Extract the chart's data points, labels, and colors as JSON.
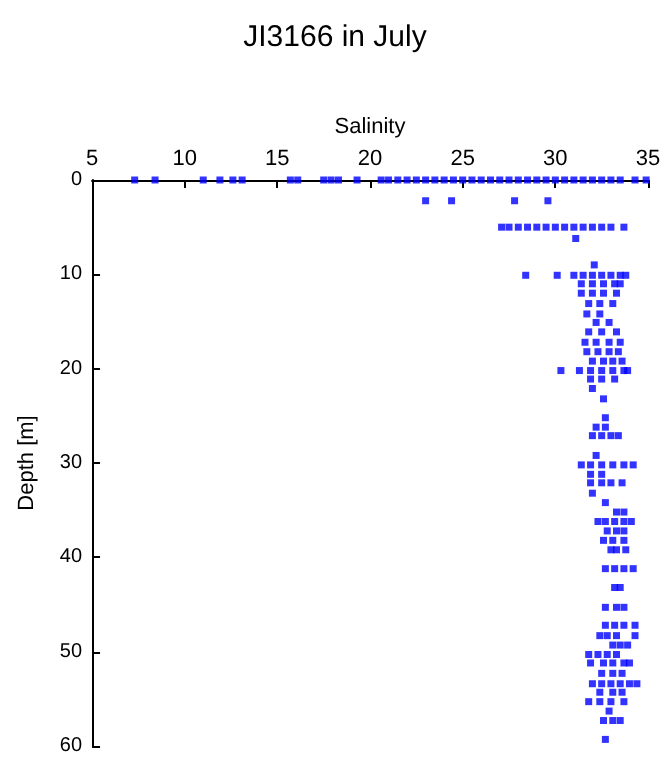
{
  "chart_data": {
    "type": "scatter",
    "title": "JI3166 in July",
    "xlabel": "Salinity",
    "ylabel": "Depth [m]",
    "xlim": [
      5,
      35
    ],
    "xticks": [
      5,
      10,
      15,
      20,
      25,
      30,
      35
    ],
    "ylim": [
      60,
      0
    ],
    "yticks": [
      0,
      10,
      20,
      30,
      40,
      50,
      60
    ],
    "grid": false,
    "marker": "square",
    "series": [
      {
        "color": "#0000ff",
        "x": [
          7.3,
          8.4,
          11.0,
          11.9,
          12.6,
          13.1,
          15.7,
          16.1,
          17.5,
          17.9,
          18.3,
          19.3,
          20.6,
          21.0,
          21.5,
          22.0,
          22.5,
          23,
          23.5,
          24,
          24.5,
          25,
          25.5,
          26,
          26.5,
          27,
          27.5,
          28,
          28.5,
          29,
          29.5,
          30,
          30.5,
          31,
          31.5,
          32,
          32.5,
          33,
          33.5,
          34.3,
          34.9,
          23.0,
          24.4,
          27.8,
          29.6,
          27.1,
          27.5,
          28,
          28.5,
          29,
          29.5,
          30,
          30.5,
          31,
          31.5,
          32,
          32.5,
          33,
          33.7,
          31.1,
          32.1,
          28.4,
          30.1,
          31.0,
          31.5,
          32,
          32.5,
          33,
          33.5,
          33.8,
          31.4,
          32,
          32.6,
          33.2,
          33.5,
          31.4,
          32,
          32.6,
          33.3,
          31.8,
          32.4,
          33.1,
          31.7,
          32.4,
          32.2,
          32.9,
          31.8,
          32.5,
          33.3,
          31.6,
          32.2,
          32.9,
          33.5,
          31.7,
          32.3,
          32.9,
          33.4,
          32.0,
          32.6,
          33.1,
          33.6,
          30.3,
          31.3,
          31.9,
          32.5,
          33.1,
          33.7,
          33.9,
          31.9,
          32.5,
          33.2,
          32.0,
          32.6,
          32.7,
          32.2,
          32.7,
          32.0,
          32.5,
          33.0,
          33.4,
          32.2,
          31.4,
          31.9,
          32.5,
          33.1,
          33.7,
          34.2,
          31.9,
          32.5,
          31.9,
          32.5,
          33.0,
          33.6,
          32.0,
          32.7,
          33.3,
          33.7,
          32.3,
          32.7,
          33.2,
          33.7,
          34.1,
          32.8,
          33.3,
          33.7,
          32.6,
          33.1,
          33.7,
          33.0,
          33.3,
          33.8,
          32.7,
          33.2,
          33.7,
          34.2,
          33.2,
          33.5,
          32.7,
          33.3,
          33.7,
          32.7,
          33.2,
          33.7,
          34.3,
          32.4,
          32.8,
          33.3,
          34.3,
          33.1,
          33.5,
          33.9,
          31.8,
          32.3,
          32.8,
          33.3,
          31.9,
          32.6,
          33.1,
          33.7,
          34.0,
          32.5,
          33.1,
          33.6,
          32.0,
          32.5,
          33.0,
          33.5,
          34.0,
          34.4,
          32.4,
          33.1,
          33.6,
          31.8,
          32.4,
          33.0,
          33.7,
          32.9,
          32.6,
          33.1,
          33.5,
          32.7
        ],
        "values": [
          0,
          0,
          0,
          0,
          0,
          0,
          0,
          0,
          0,
          0,
          0,
          0,
          0,
          0,
          0,
          0,
          0,
          0,
          0,
          0,
          0,
          0,
          0,
          0,
          0,
          0,
          0,
          0,
          0,
          0,
          0,
          0,
          0,
          0,
          0,
          0,
          0,
          0,
          0,
          0,
          0,
          2.2,
          2.2,
          2.2,
          2.2,
          5,
          5,
          5,
          5,
          5,
          5,
          5,
          5,
          5,
          5,
          5,
          5,
          5,
          5,
          6.2,
          9.0,
          10.1,
          10.1,
          10.1,
          10.1,
          10.1,
          10.1,
          10.1,
          10.1,
          10.1,
          11,
          11,
          11,
          11,
          11,
          12,
          12,
          12,
          12,
          13.1,
          13.1,
          13.1,
          14.2,
          14.2,
          15.1,
          15.1,
          16.1,
          16.1,
          16.1,
          17.2,
          17.2,
          17.2,
          17.2,
          18.2,
          18.2,
          18.2,
          18.2,
          19.2,
          19.2,
          19.2,
          19.2,
          20.2,
          20.2,
          20.2,
          20.2,
          20.2,
          20.2,
          20.2,
          21.1,
          21.1,
          21.1,
          22.1,
          23.2,
          25.2,
          26.2,
          26.2,
          27.1,
          27.1,
          27.1,
          27.1,
          29.2,
          30.2,
          30.2,
          30.2,
          30.2,
          30.2,
          30.2,
          31.2,
          31.2,
          32.1,
          32.1,
          32.1,
          32.1,
          33.2,
          34.2,
          35.2,
          35.2,
          36.2,
          36.2,
          36.2,
          36.2,
          36.2,
          37.2,
          37.2,
          37.2,
          38.2,
          38.2,
          38.2,
          39.2,
          39.2,
          39.2,
          41.2,
          41.2,
          41.2,
          41.2,
          43.2,
          43.2,
          45.3,
          45.3,
          45.3,
          47.2,
          47.2,
          47.2,
          47.2,
          48.3,
          48.3,
          48.3,
          48.3,
          49.3,
          49.3,
          49.3,
          50.3,
          50.3,
          50.3,
          50.3,
          51.2,
          51.2,
          51.2,
          51.2,
          51.2,
          52.3,
          52.3,
          52.3,
          53.4,
          53.4,
          53.4,
          53.4,
          53.4,
          53.4,
          54.3,
          54.3,
          54.3,
          55.3,
          55.3,
          55.3,
          55.3,
          56.3,
          57.3,
          57.3,
          57.3,
          59.3
        ]
      }
    ]
  }
}
